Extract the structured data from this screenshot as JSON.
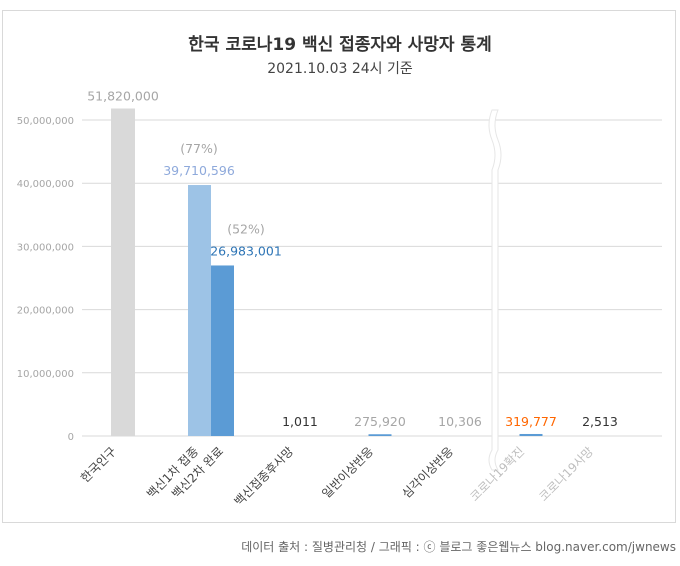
{
  "chart_data": {
    "type": "bar",
    "title": "한국 코로나19 백신 접종자와 사망자 통계",
    "subtitle": "2021.10.03 24시 기준",
    "ylim": [
      0,
      50000000
    ],
    "y_ticks": [
      "0",
      "10,000,000",
      "20,000,000",
      "30,000,000",
      "40,000,000",
      "50,000,000"
    ],
    "y_tick_values": [
      0,
      10000000,
      20000000,
      30000000,
      40000000,
      50000000
    ],
    "grid": true,
    "axis_break": "between 심각이상반응 and 코로나19확진",
    "bars": [
      {
        "category": "한국인구",
        "value": 51820000,
        "label": "51,820,000",
        "color": "#d9d9d9",
        "label_color": "#a6a6a6"
      },
      {
        "category": "백신1차 접종",
        "value": 39710596,
        "label": "39,710,596",
        "pct": "(77%)",
        "color": "#9dc3e6",
        "label_color": "#8ea9db"
      },
      {
        "category": "백신2차 완료",
        "value": 26983001,
        "label": "26,983,001",
        "pct": "(52%)",
        "color": "#5b9bd5",
        "label_color": "#2e75b6"
      },
      {
        "category": "백신접종후사망",
        "value": 1011,
        "label": "1,011",
        "color": "#5b9bd5",
        "label_color": "#333333"
      },
      {
        "category": "일반이상반응",
        "value": 275920,
        "label": "275,920",
        "color": "#5b9bd5",
        "label_color": "#a6a6a6"
      },
      {
        "category": "심각이상반응",
        "value": 10306,
        "label": "10,306",
        "color": "#5b9bd5",
        "label_color": "#a6a6a6"
      },
      {
        "category": "코로나19확진",
        "value": 319777,
        "label": "319,777",
        "color": "#5b9bd5",
        "label_color": "#ff6600"
      },
      {
        "category": "코로나19사망",
        "value": 2513,
        "label": "2,513",
        "color": "#5b9bd5",
        "label_color": "#333333"
      }
    ]
  },
  "source": "데이터 출처 : 질병관리청 / 그래픽 : ⓒ 블로그 좋은웹뉴스 blog.naver.com/jwnews"
}
